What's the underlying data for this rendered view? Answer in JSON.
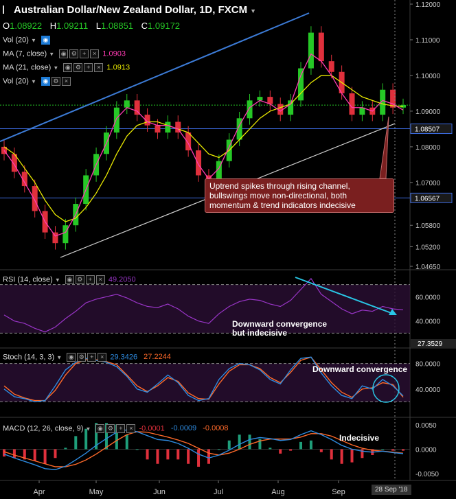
{
  "header": {
    "symbol_icon": "flag-icon",
    "title": "Australian Dollar/New Zealand Dollar, 1D, FXCM",
    "ohlc": {
      "o_label": "O",
      "o": "1.08922",
      "h_label": "H",
      "h": "1.09211",
      "l_label": "L",
      "l": "1.08851",
      "c_label": "C",
      "c": "1.09172"
    },
    "indicators": [
      {
        "label": "Vol (20)",
        "value": ""
      },
      {
        "label": "MA (7, close)",
        "value": "1.0903",
        "color": "#ff3bb3"
      },
      {
        "label": "MA (21, close)",
        "value": "1.0913",
        "color": "#e8e800"
      },
      {
        "label": "Vol (20)",
        "value": ""
      }
    ]
  },
  "colors": {
    "up": "#26c826",
    "down": "#e0303c",
    "ma7": "#ff3bb3",
    "ma21": "#e8e800",
    "channel_upper": "#3c7bd6",
    "channel_lower": "#cfcfcf",
    "rsi": "#9a35c8",
    "stoch_k": "#2e8be0",
    "stoch_d": "#ff6a2a",
    "arrow": "#29c7e6"
  },
  "price_axis": {
    "ticks": [
      "1.12000",
      "1.11000",
      "1.10000",
      "1.09000",
      "1.08000",
      "1.07000",
      "1.05800",
      "1.05200",
      "1.04650"
    ],
    "tag_a": "1.08507",
    "tag_b": "1.06567"
  },
  "note": "Uptrend spikes through rising channel, bullswings move non-directional, both momentum & trend indicators indecisive",
  "rsi": {
    "label": "RSI (14, close)",
    "value": "49.2050",
    "ticks": [
      "60.0000",
      "40.0000"
    ],
    "tag": "27.3529",
    "annotation": "Downward convergence\nbut indecisive"
  },
  "stoch": {
    "label": "Stoch (14, 3, 3)",
    "k": "29.3426",
    "d": "27.2244",
    "ticks": [
      "80.0000",
      "40.0000"
    ],
    "annotation": "Downward convergence"
  },
  "macd": {
    "label": "MACD (12, 26, close, 9)",
    "hist": "-0.0001",
    "macd": "-0.0009",
    "signal": "-0.0008",
    "ticks": [
      "0.0050",
      "0.0000",
      "-0.0050"
    ],
    "annotation": "Indecisive"
  },
  "time_axis": {
    "labels": [
      "Apr",
      "May",
      "Jun",
      "Jul",
      "Aug",
      "Sep"
    ],
    "cursor_date": "28 Sep '18"
  },
  "chart_data": {
    "type": "candlestick",
    "title": "Australian Dollar/New Zealand Dollar, 1D, FXCM",
    "x": [
      "Mar 15",
      "Mar 20",
      "Mar 25",
      "Mar 30",
      "Apr 4",
      "Apr 9",
      "Apr 14",
      "Apr 19",
      "Apr 24",
      "Apr 29",
      "May 4",
      "May 9",
      "May 14",
      "May 19",
      "May 24",
      "May 29",
      "Jun 3",
      "Jun 8",
      "Jun 13",
      "Jun 18",
      "Jun 23",
      "Jun 28",
      "Jul 3",
      "Jul 8",
      "Jul 13",
      "Jul 18",
      "Jul 23",
      "Jul 28",
      "Aug 2",
      "Aug 7",
      "Aug 12",
      "Aug 17",
      "Aug 22",
      "Aug 27",
      "Sep 1",
      "Sep 6",
      "Sep 11",
      "Sep 16",
      "Sep 21",
      "Sep 26"
    ],
    "close": [
      1.078,
      1.073,
      1.069,
      1.062,
      1.056,
      1.053,
      1.058,
      1.064,
      1.072,
      1.078,
      1.084,
      1.091,
      1.093,
      1.089,
      1.086,
      1.084,
      1.087,
      1.084,
      1.079,
      1.072,
      1.069,
      1.076,
      1.082,
      1.088,
      1.093,
      1.094,
      1.092,
      1.089,
      1.093,
      1.102,
      1.112,
      1.104,
      1.101,
      1.095,
      1.089,
      1.091,
      1.089,
      1.096,
      1.091,
      1.0917
    ],
    "ylim": [
      1.0465,
      1.12
    ],
    "ma7": [
      1.079,
      1.075,
      1.07,
      1.065,
      1.059,
      1.055,
      1.056,
      1.061,
      1.068,
      1.075,
      1.081,
      1.088,
      1.091,
      1.09,
      1.087,
      1.086,
      1.086,
      1.085,
      1.081,
      1.075,
      1.071,
      1.074,
      1.08,
      1.086,
      1.091,
      1.093,
      1.092,
      1.09,
      1.092,
      1.1,
      1.106,
      1.104,
      1.1,
      1.095,
      1.091,
      1.091,
      1.09,
      1.093,
      1.092,
      1.0903
    ],
    "ma21": [
      1.08,
      1.078,
      1.074,
      1.07,
      1.065,
      1.061,
      1.059,
      1.06,
      1.063,
      1.067,
      1.072,
      1.078,
      1.083,
      1.086,
      1.087,
      1.087,
      1.086,
      1.085,
      1.084,
      1.081,
      1.078,
      1.077,
      1.079,
      1.082,
      1.085,
      1.088,
      1.09,
      1.091,
      1.092,
      1.095,
      1.098,
      1.1,
      1.1,
      1.098,
      1.096,
      1.094,
      1.093,
      1.092,
      1.0915,
      1.0913
    ],
    "rsi": [
      45,
      40,
      38,
      34,
      31,
      35,
      42,
      48,
      55,
      58,
      60,
      62,
      59,
      55,
      52,
      51,
      54,
      50,
      44,
      40,
      38,
      46,
      52,
      56,
      58,
      57,
      54,
      52,
      57,
      66,
      75,
      62,
      56,
      50,
      46,
      49,
      48,
      52,
      50,
      49.2
    ],
    "stoch_k": [
      40,
      28,
      25,
      20,
      22,
      45,
      70,
      82,
      88,
      85,
      82,
      75,
      60,
      40,
      35,
      48,
      62,
      50,
      30,
      22,
      25,
      55,
      72,
      80,
      78,
      70,
      55,
      48,
      70,
      88,
      90,
      65,
      45,
      30,
      25,
      45,
      40,
      55,
      45,
      29.3
    ],
    "stoch_d": [
      45,
      32,
      26,
      22,
      22,
      38,
      62,
      80,
      86,
      86,
      83,
      78,
      62,
      45,
      36,
      45,
      58,
      52,
      34,
      25,
      24,
      48,
      68,
      78,
      78,
      72,
      58,
      50,
      66,
      85,
      90,
      70,
      50,
      35,
      27,
      40,
      42,
      50,
      47,
      27.2
    ],
    "macd": [
      -0.001,
      -0.0018,
      -0.0025,
      -0.0032,
      -0.004,
      -0.0042,
      -0.0035,
      -0.0022,
      -0.0008,
      0.0008,
      0.0022,
      0.0035,
      0.004,
      0.0036,
      0.0028,
      0.002,
      0.0018,
      0.0012,
      0.0002,
      -0.001,
      -0.0018,
      -0.0012,
      -0.0002,
      0.001,
      0.002,
      0.0024,
      0.0022,
      0.0018,
      0.002,
      0.003,
      0.0038,
      0.003,
      0.002,
      0.0008,
      0.0,
      -0.0004,
      -0.0006,
      -0.0004,
      -0.0007,
      -0.0009
    ],
    "signal": [
      -0.0005,
      -0.0012,
      -0.0018,
      -0.0024,
      -0.003,
      -0.0036,
      -0.0036,
      -0.0031,
      -0.0022,
      -0.001,
      0.0004,
      0.0018,
      0.003,
      0.0036,
      0.0035,
      0.003,
      0.0025,
      0.0019,
      0.0012,
      0.0002,
      -0.0008,
      -0.0012,
      -0.0008,
      0.0,
      0.001,
      0.0017,
      0.0021,
      0.0021,
      0.0021,
      0.0025,
      0.0032,
      0.0032,
      0.0027,
      0.0018,
      0.0009,
      0.0002,
      -0.0002,
      -0.0004,
      -0.0006,
      -0.0008
    ]
  }
}
